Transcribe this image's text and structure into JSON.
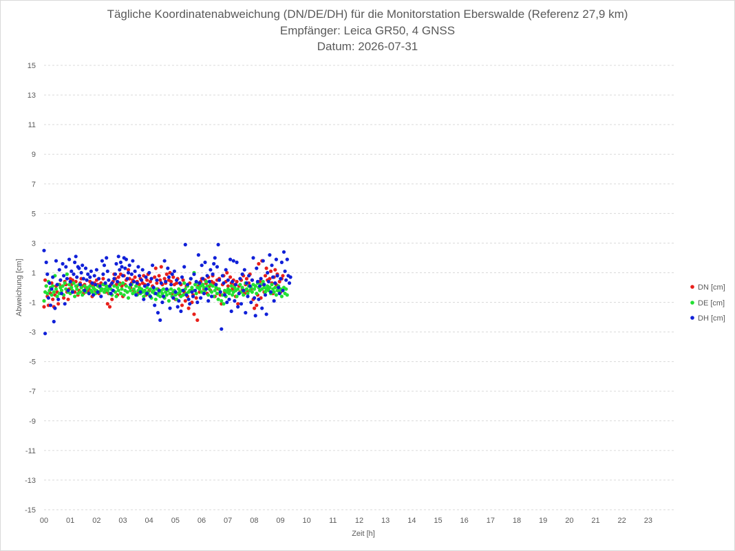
{
  "chart_data": {
    "type": "scatter",
    "title": "Tägliche Koordinatenabweichung (DN/DE/DH) für die Monitorstation Eberswalde (Referenz 27,9 km)",
    "subtitle": "Empfänger: Leica GR50, 4 GNSS",
    "date_line": "Datum: 2026-07-31",
    "xlabel": "Zeit [h]",
    "ylabel": "Abweichung [cm]",
    "xlim": [
      0,
      24
    ],
    "ylim": [
      -15,
      15
    ],
    "x_ticks": [
      "00",
      "01",
      "02",
      "03",
      "04",
      "05",
      "06",
      "07",
      "08",
      "09",
      "10",
      "11",
      "12",
      "13",
      "14",
      "15",
      "16",
      "17",
      "18",
      "19",
      "20",
      "21",
      "22",
      "23"
    ],
    "y_ticks": [
      15,
      13,
      11,
      9,
      7,
      5,
      3,
      1,
      -1,
      -3,
      -5,
      -7,
      -9,
      -11,
      -13,
      -15
    ],
    "grid": "horizontal dashed",
    "legend_position": "right",
    "x_step_hours": 0.0417,
    "series": [
      {
        "name": "DN [cm]",
        "color": "#e8201b",
        "values": [
          -1.3,
          0.5,
          0.1,
          -0.6,
          -1.2,
          -0.2,
          -0.4,
          0.3,
          -0.8,
          -1.3,
          -0.5,
          0.1,
          -0.3,
          -1.1,
          0.2,
          0.5,
          -0.2,
          0.1,
          -0.7,
          0.4,
          0.2,
          -0.3,
          -0.8,
          -0.1,
          0.6,
          0.2,
          0.5,
          0.3,
          -0.3,
          0.4,
          0.1,
          -0.5,
          -0.2,
          0.3,
          0.6,
          0.1,
          -0.4,
          0.2,
          0.0,
          0.5,
          -0.3,
          -0.1,
          0.4,
          0.2,
          -0.6,
          0.1,
          0.3,
          -0.2,
          0.5,
          0.2,
          -0.4,
          0.0,
          0.3,
          -0.1,
          0.6,
          0.2,
          -0.3,
          0.1,
          -1.1,
          -0.4,
          -1.3,
          0.2,
          -0.8,
          0.4,
          0.9,
          0.6,
          0.2,
          -0.5,
          0.7,
          0.3,
          0.9,
          0.1,
          -0.6,
          0.8,
          0.2,
          0.5,
          -0.3,
          1.2,
          0.6,
          0.0,
          0.3,
          0.5,
          -0.2,
          0.7,
          0.1,
          0.4,
          -0.4,
          0.2,
          0.6,
          -0.1,
          0.3,
          0.8,
          0.2,
          -0.5,
          0.5,
          0.9,
          -0.2,
          0.4,
          0.6,
          0.1,
          -0.3,
          0.7,
          1.3,
          0.3,
          -0.1,
          0.8,
          0.5,
          1.4,
          0.2,
          -0.6,
          0.6,
          0.3,
          0.9,
          -0.2,
          0.5,
          1.0,
          0.4,
          -0.4,
          0.7,
          0.2,
          -0.8,
          0.3,
          0.6,
          -0.1,
          -0.5,
          0.2,
          -1.2,
          0.5,
          -0.3,
          -0.9,
          0.1,
          -0.6,
          -1.4,
          0.3,
          -0.2,
          -1.0,
          -0.5,
          -1.8,
          0.2,
          -0.7,
          -2.2,
          0.1,
          -0.3,
          0.4,
          0.6,
          0.2,
          -0.1,
          0.5,
          0.3,
          -0.4,
          0.7,
          0.1,
          -0.2,
          0.4,
          0.8,
          0.3,
          -0.6,
          0.2,
          0.5,
          -0.1,
          0.6,
          -0.5,
          -1.1,
          0.2,
          0.8,
          -0.3,
          0.4,
          1.0,
          0.1,
          -0.2,
          0.7,
          0.3,
          -0.1,
          0.5,
          0.2,
          -0.6,
          0.4,
          -1.1,
          0.1,
          -0.3,
          0.5,
          -0.1,
          0.8,
          -0.4,
          0.2,
          0.6,
          -0.3,
          0.3,
          0.9,
          -0.1,
          0.5,
          -0.8,
          -1.4,
          0.1,
          -1.2,
          -0.5,
          1.6,
          0.4,
          -0.7,
          1.8,
          0.2,
          -0.3,
          0.8,
          1.3,
          0.5,
          -0.1,
          0.6,
          1.1,
          0.3,
          -0.4,
          0.7,
          1.2,
          0.2,
          0.9,
          0.1,
          0.4,
          -0.3,
          0.6,
          0.8
        ]
      },
      {
        "name": "DE [cm]",
        "color": "#22e033",
        "values": [
          -0.9,
          -0.3,
          0.1,
          -0.4,
          0.4,
          -0.2,
          0.0,
          -0.5,
          0.1,
          -0.3,
          0.8,
          -0.1,
          -0.6,
          0.2,
          -0.4,
          0.0,
          -0.2,
          0.1,
          -0.5,
          0.3,
          -0.1,
          0.9,
          -0.3,
          0.2,
          -0.4,
          0.0,
          -0.2,
          0.3,
          -0.6,
          0.1,
          -0.1,
          -0.4,
          0.2,
          -0.3,
          0.0,
          -0.5,
          -0.2,
          0.1,
          -0.3,
          -0.1,
          0.0,
          -0.4,
          0.1,
          -0.2,
          -0.3,
          0.0,
          -0.1,
          -0.4,
          -0.2,
          0.1,
          -0.3,
          0.0,
          -0.2,
          -0.1,
          0.2,
          -0.3,
          -0.1,
          0.1,
          -0.2,
          0.0,
          -0.4,
          -0.1,
          -0.5,
          -0.2,
          0.1,
          -0.3,
          -0.6,
          0.0,
          -0.2,
          0.2,
          -0.4,
          -0.1,
          0.3,
          -0.5,
          -0.2,
          0.1,
          -0.3,
          -0.7,
          0.0,
          -0.2,
          0.2,
          -0.4,
          -0.1,
          -0.3,
          0.1,
          -0.5,
          -0.2,
          0.0,
          -0.4,
          -0.1,
          -0.3,
          -0.6,
          -0.2,
          -0.4,
          0.0,
          -0.3,
          -0.5,
          -0.1,
          -0.7,
          -0.3,
          -0.2,
          -0.4,
          -0.8,
          -0.1,
          -0.5,
          -0.3,
          -0.6,
          -0.2,
          -0.4,
          -0.1,
          -0.7,
          -0.3,
          -0.5,
          -0.2,
          -0.9,
          -0.4,
          -0.1,
          -0.6,
          -0.3,
          -0.2,
          -0.5,
          -0.8,
          -0.4,
          -0.1,
          -0.3,
          -0.6,
          -0.2,
          -0.5,
          0.3,
          -0.1,
          -0.4,
          0.1,
          -0.3,
          -0.2,
          0.6,
          0.0,
          -0.2,
          1.0,
          0.2,
          -0.4,
          0.0,
          0.3,
          -0.1,
          0.1,
          -0.3,
          0.2,
          0.0,
          -0.2,
          0.4,
          0.1,
          -0.5,
          -0.1,
          0.2,
          -0.3,
          0.1,
          -0.6,
          -0.2,
          0.0,
          -0.4,
          -0.8,
          -0.1,
          -0.3,
          -0.9,
          -0.5,
          -1.1,
          -0.2,
          -0.6,
          -0.3,
          -0.1,
          -0.4,
          -0.2,
          0.1,
          -0.5,
          -0.3,
          0.0,
          -0.2,
          -0.6,
          -0.1,
          -0.4,
          0.2,
          -0.3,
          0.0,
          -0.5,
          -0.2,
          0.3,
          -0.1,
          -0.4,
          0.1,
          -0.2,
          0.0,
          -0.3,
          0.2,
          -0.1,
          0.1,
          -0.4,
          0.3,
          0.0,
          -0.2,
          0.2,
          -0.1,
          0.4,
          0.0,
          -0.3,
          -0.1,
          0.1,
          -0.2,
          0.0,
          -0.4,
          0.2,
          -0.1,
          -0.3,
          0.0,
          -0.5,
          -0.2,
          0.1,
          -0.3,
          -0.1,
          -0.6,
          -0.2,
          0.0,
          -0.4,
          -0.1,
          -0.5
        ]
      },
      {
        "name": "DH [cm]",
        "color": "#1020d8",
        "values": [
          2.5,
          -3.1,
          1.7,
          0.9,
          -0.7,
          0.3,
          -1.2,
          -0.1,
          0.7,
          -2.3,
          -1.4,
          1.8,
          0.2,
          -0.8,
          1.2,
          0.5,
          -0.4,
          1.6,
          0.8,
          -1.1,
          1.4,
          0.6,
          -0.2,
          1.9,
          0.4,
          1.1,
          -0.3,
          0.9,
          1.7,
          2.1,
          0.7,
          1.4,
          1.3,
          0.2,
          1.0,
          1.5,
          0.6,
          -0.2,
          1.3,
          0.5,
          0.9,
          -0.4,
          0.7,
          1.1,
          0.3,
          -0.5,
          0.8,
          0.2,
          1.2,
          -0.3,
          0.6,
          0.1,
          -0.6,
          1.8,
          0.9,
          1.5,
          0.3,
          2.0,
          1.1,
          0.5,
          0.1,
          -0.4,
          0.3,
          -0.2,
          0.6,
          0.9,
          1.6,
          0.4,
          2.1,
          1.2,
          1.7,
          1.4,
          0.8,
          2.0,
          1.3,
          1.9,
          0.6,
          1.0,
          1.5,
          0.2,
          0.9,
          1.8,
          0.4,
          1.1,
          -0.5,
          0.3,
          1.4,
          0.8,
          -0.3,
          0.5,
          1.2,
          -0.8,
          0.1,
          0.7,
          -0.4,
          0.2,
          1.0,
          -0.6,
          0.6,
          1.5,
          0.0,
          -1.2,
          -0.4,
          0.5,
          -1.7,
          -0.2,
          -2.2,
          0.3,
          -1.0,
          -0.6,
          1.8,
          0.4,
          -0.1,
          1.3,
          0.7,
          -1.4,
          0.2,
          0.9,
          -0.7,
          1.1,
          -0.3,
          0.5,
          -1.3,
          -0.9,
          0.3,
          -1.6,
          0.7,
          -0.2,
          1.4,
          2.9,
          -0.5,
          0.2,
          -0.8,
          -1.1,
          0.6,
          -0.3,
          -0.6,
          0.9,
          -0.2,
          0.4,
          -1.0,
          2.2,
          0.3,
          -0.7,
          1.5,
          0.6,
          -0.4,
          1.7,
          -0.1,
          0.8,
          -0.9,
          0.4,
          1.2,
          -0.6,
          0.9,
          1.6,
          2.0,
          0.2,
          1.4,
          2.9,
          0.5,
          -0.3,
          -2.8,
          0.8,
          0.3,
          -0.5,
          1.2,
          -1.0,
          0.5,
          -0.8,
          1.9,
          -1.6,
          0.4,
          1.8,
          -0.9,
          0.2,
          1.7,
          -1.3,
          -0.4,
          0.6,
          -1.1,
          0.9,
          -0.2,
          1.2,
          -1.7,
          0.3,
          -0.6,
          0.8,
          0.1,
          -1.0,
          0.5,
          2.0,
          -0.7,
          -1.9,
          1.3,
          0.4,
          -0.8,
          0.1,
          0.6,
          -1.4,
          1.8,
          0.2,
          -0.5,
          -1.8,
          1.0,
          0.4,
          2.2,
          -0.3,
          1.5,
          0.7,
          -0.9,
          0.3,
          1.9,
          0.8,
          0.0,
          -0.4,
          0.6,
          1.7,
          -0.2,
          2.4,
          1.1,
          0.5,
          1.9,
          0.8,
          0.3,
          0.7
        ]
      }
    ]
  }
}
